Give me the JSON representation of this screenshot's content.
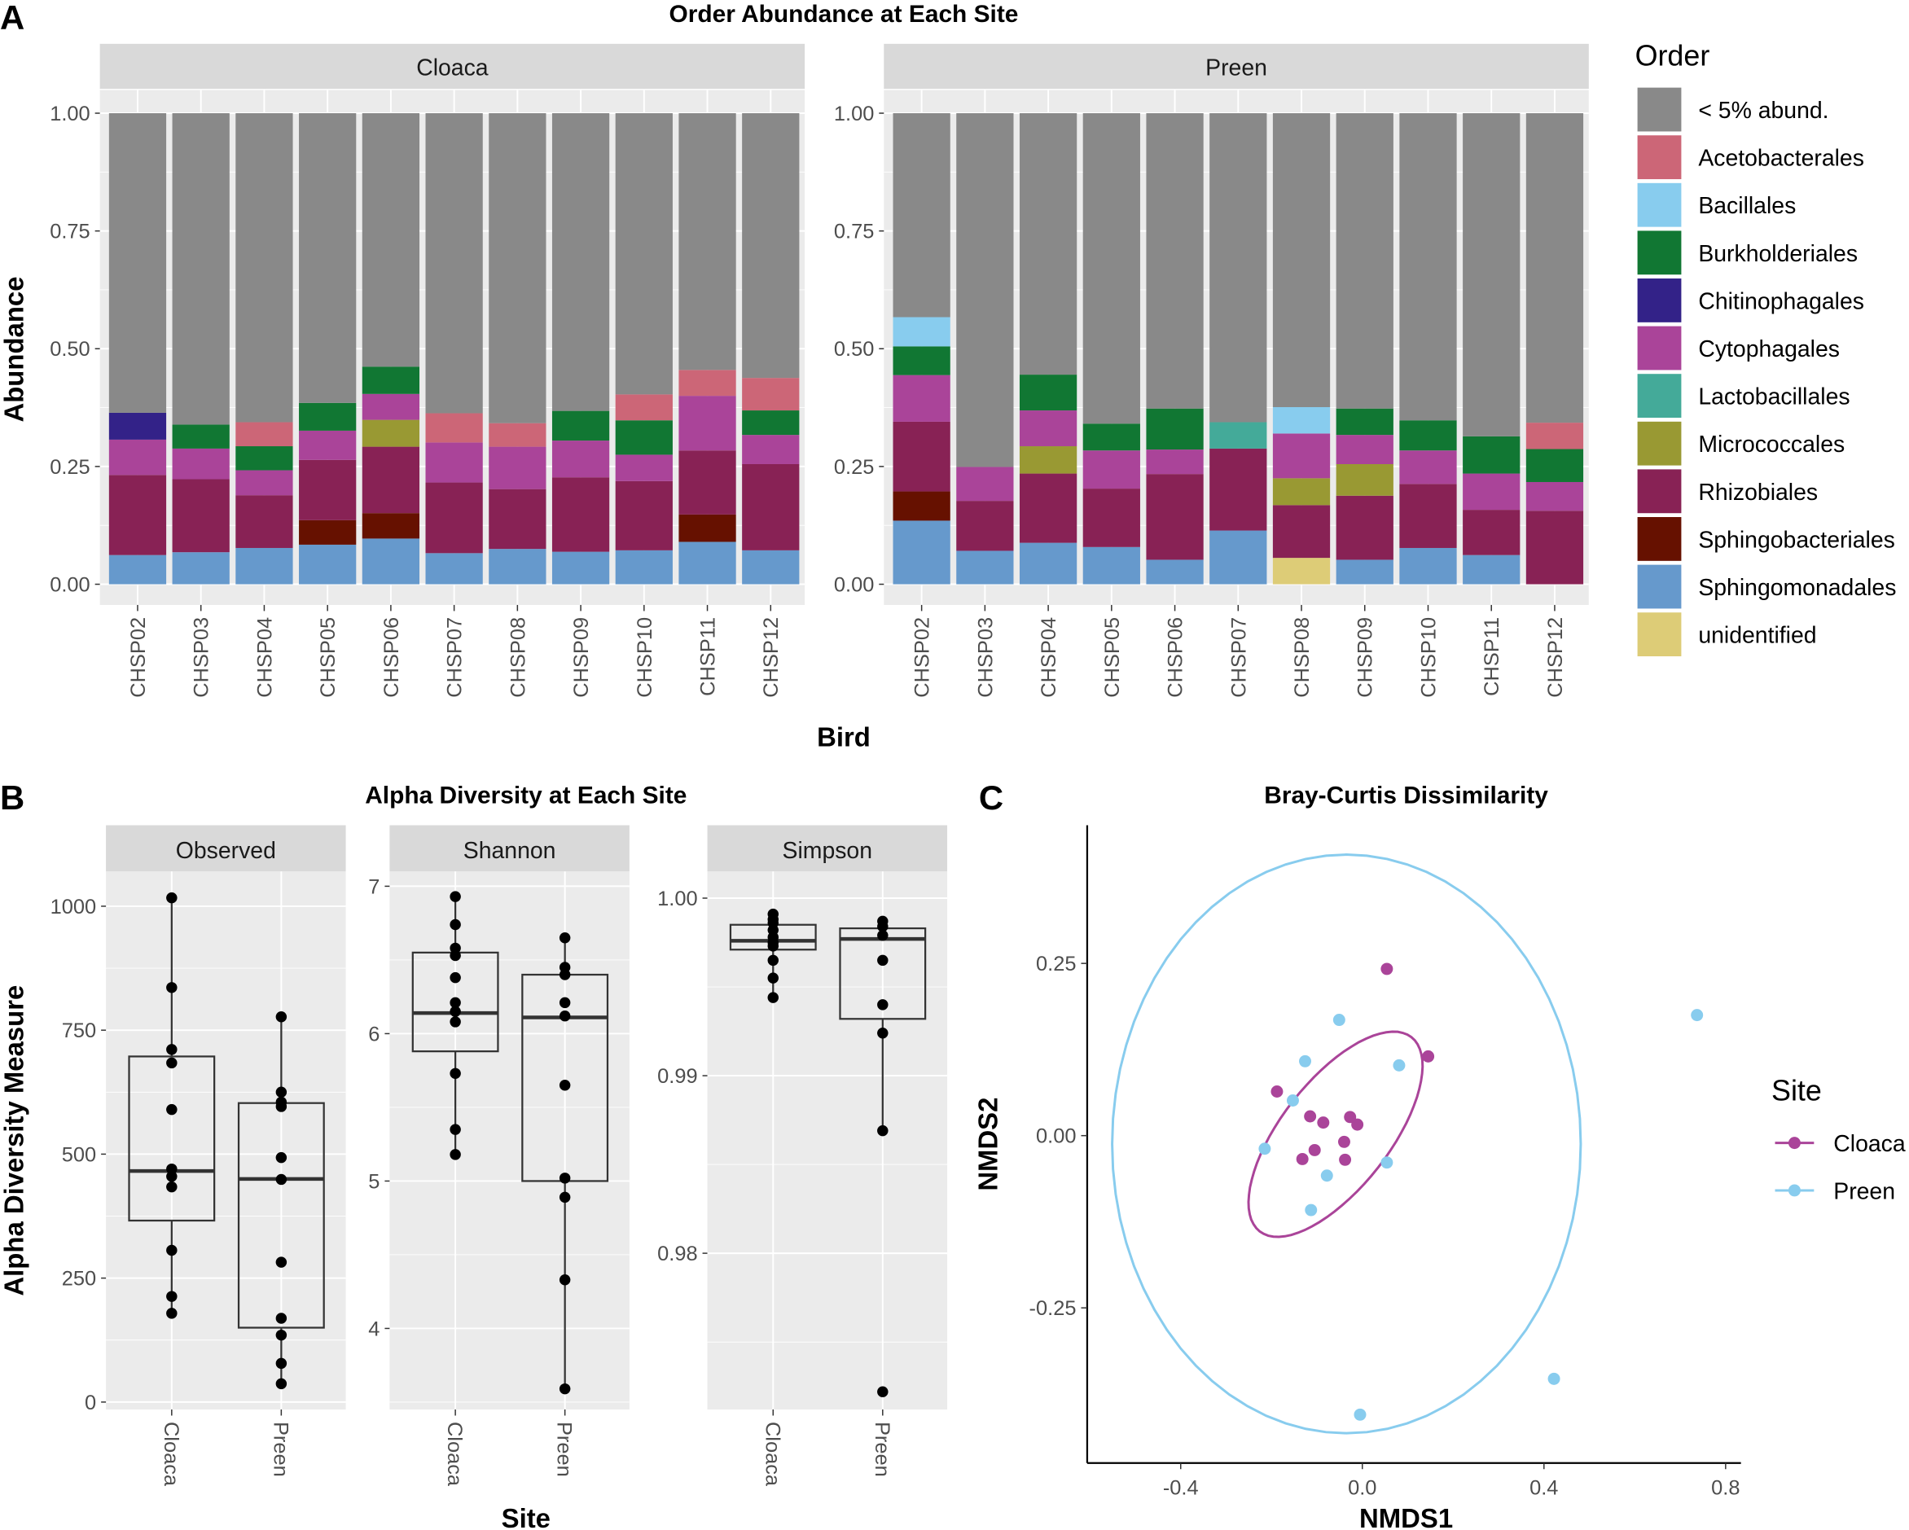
{
  "panel_labels": {
    "a": "A",
    "b": "B",
    "c": "C"
  },
  "chart_data": [
    {
      "type": "bar",
      "stacked": true,
      "title": "Order Abundance at Each Site",
      "xlabel": "Bird",
      "ylabel": "Abundance",
      "ylim": [
        0,
        1
      ],
      "yticks": [
        "0.00",
        "0.25",
        "0.50",
        "0.75",
        "1.00"
      ],
      "legend": {
        "title": "Order",
        "placement": "right"
      },
      "orders": [
        {
          "name": "< 5% abund.",
          "color": "#898989"
        },
        {
          "name": "Acetobacterales",
          "color": "#CC6677"
        },
        {
          "name": "Bacillales",
          "color": "#88CCEE"
        },
        {
          "name": "Burkholderiales",
          "color": "#117733"
        },
        {
          "name": "Chitinophagales",
          "color": "#332288"
        },
        {
          "name": "Cytophagales",
          "color": "#AA4499"
        },
        {
          "name": "Lactobacillales",
          "color": "#44AA99"
        },
        {
          "name": "Micrococcales",
          "color": "#999933"
        },
        {
          "name": "Rhizobiales",
          "color": "#882255"
        },
        {
          "name": "Sphingobacteriales",
          "color": "#661100"
        },
        {
          "name": "Sphingomonadales",
          "color": "#6699CC"
        },
        {
          "name": "unidentified",
          "color": "#DDCC77"
        }
      ],
      "facets": [
        {
          "label": "Cloaca",
          "bars": [
            {
              "bird": "CHSP02",
              "values": {
                "Sphingomonadales": 0.062,
                "Rhizobiales": 0.17,
                "Cytophagales": 0.075,
                "Chitinophagales": 0.057,
                "< 5% abund.": 0.636
              }
            },
            {
              "bird": "CHSP03",
              "values": {
                "Sphingomonadales": 0.068,
                "Rhizobiales": 0.155,
                "Cytophagales": 0.065,
                "Burkholderiales": 0.051,
                "< 5% abund.": 0.661
              }
            },
            {
              "bird": "CHSP04",
              "values": {
                "Sphingomonadales": 0.077,
                "Rhizobiales": 0.112,
                "Cytophagales": 0.053,
                "Burkholderiales": 0.051,
                "Acetobacterales": 0.051,
                "< 5% abund.": 0.656
              }
            },
            {
              "bird": "CHSP05",
              "values": {
                "Sphingomonadales": 0.084,
                "Sphingobacteriales": 0.052,
                "Rhizobiales": 0.128,
                "Cytophagales": 0.062,
                "Burkholderiales": 0.059,
                "< 5% abund.": 0.615
              }
            },
            {
              "bird": "CHSP06",
              "values": {
                "Sphingomonadales": 0.097,
                "Sphingobacteriales": 0.054,
                "Rhizobiales": 0.141,
                "Micrococcales": 0.057,
                "Cytophagales": 0.055,
                "Burkholderiales": 0.058,
                "< 5% abund.": 0.538
              }
            },
            {
              "bird": "CHSP07",
              "values": {
                "Sphingomonadales": 0.066,
                "Rhizobiales": 0.15,
                "Cytophagales": 0.085,
                "Acetobacterales": 0.062,
                "< 5% abund.": 0.637
              }
            },
            {
              "bird": "CHSP08",
              "values": {
                "Sphingomonadales": 0.075,
                "Rhizobiales": 0.127,
                "Cytophagales": 0.09,
                "Acetobacterales": 0.05,
                "< 5% abund.": 0.658
              }
            },
            {
              "bird": "CHSP09",
              "values": {
                "Sphingomonadales": 0.069,
                "Rhizobiales": 0.158,
                "Cytophagales": 0.078,
                "Burkholderiales": 0.063,
                "< 5% abund.": 0.632
              }
            },
            {
              "bird": "CHSP10",
              "values": {
                "Sphingomonadales": 0.072,
                "Rhizobiales": 0.147,
                "Cytophagales": 0.056,
                "Burkholderiales": 0.073,
                "Acetobacterales": 0.055,
                "< 5% abund.": 0.597
              }
            },
            {
              "bird": "CHSP11",
              "values": {
                "Sphingomonadales": 0.09,
                "Sphingobacteriales": 0.058,
                "Rhizobiales": 0.136,
                "Cytophagales": 0.116,
                "Acetobacterales": 0.055,
                "< 5% abund.": 0.545
              }
            },
            {
              "bird": "CHSP12",
              "values": {
                "Sphingomonadales": 0.072,
                "Rhizobiales": 0.183,
                "Cytophagales": 0.062,
                "Burkholderiales": 0.052,
                "Acetobacterales": 0.069,
                "< 5% abund.": 0.562
              }
            }
          ]
        },
        {
          "label": "Preen",
          "bars": [
            {
              "bird": "CHSP02",
              "values": {
                "Sphingomonadales": 0.135,
                "Sphingobacteriales": 0.062,
                "Rhizobiales": 0.148,
                "Cytophagales": 0.099,
                "Burkholderiales": 0.061,
                "Bacillales": 0.062,
                "< 5% abund.": 0.433
              }
            },
            {
              "bird": "CHSP03",
              "values": {
                "Sphingomonadales": 0.071,
                "Rhizobiales": 0.106,
                "Cytophagales": 0.072,
                "< 5% abund.": 0.751
              }
            },
            {
              "bird": "CHSP04",
              "values": {
                "Sphingomonadales": 0.088,
                "Rhizobiales": 0.147,
                "Micrococcales": 0.058,
                "Cytophagales": 0.076,
                "Burkholderiales": 0.076,
                "< 5% abund.": 0.555
              }
            },
            {
              "bird": "CHSP05",
              "values": {
                "Sphingomonadales": 0.079,
                "Rhizobiales": 0.124,
                "Cytophagales": 0.081,
                "Burkholderiales": 0.057,
                "< 5% abund.": 0.659
              }
            },
            {
              "bird": "CHSP06",
              "values": {
                "Sphingomonadales": 0.052,
                "Rhizobiales": 0.182,
                "Cytophagales": 0.052,
                "Burkholderiales": 0.087,
                "< 5% abund.": 0.627
              }
            },
            {
              "bird": "CHSP07",
              "values": {
                "Sphingomonadales": 0.114,
                "Rhizobiales": 0.174,
                "Lactobacillales": 0.056,
                "< 5% abund.": 0.656
              }
            },
            {
              "bird": "CHSP08",
              "values": {
                "unidentified": 0.056,
                "Rhizobiales": 0.112,
                "Micrococcales": 0.057,
                "Cytophagales": 0.095,
                "Bacillales": 0.056,
                "< 5% abund.": 0.624
              }
            },
            {
              "bird": "CHSP09",
              "values": {
                "Sphingomonadales": 0.052,
                "Rhizobiales": 0.136,
                "Micrococcales": 0.067,
                "Cytophagales": 0.062,
                "Burkholderiales": 0.056,
                "< 5% abund.": 0.627
              }
            },
            {
              "bird": "CHSP10",
              "values": {
                "Sphingomonadales": 0.077,
                "Rhizobiales": 0.136,
                "Cytophagales": 0.071,
                "Burkholderiales": 0.064,
                "< 5% abund.": 0.652
              }
            },
            {
              "bird": "CHSP11",
              "values": {
                "Sphingomonadales": 0.062,
                "Rhizobiales": 0.096,
                "Cytophagales": 0.077,
                "Burkholderiales": 0.079,
                "< 5% abund.": 0.686
              }
            },
            {
              "bird": "CHSP12",
              "values": {
                "Rhizobiales": 0.156,
                "Cytophagales": 0.061,
                "Burkholderiales": 0.07,
                "Acetobacterales": 0.056,
                "< 5% abund.": 0.657
              }
            }
          ]
        }
      ]
    },
    {
      "type": "box",
      "title": "Alpha Diversity at Each Site",
      "xlabel": "Site",
      "ylabel": "Alpha Diversity Measure",
      "categories": [
        "Cloaca",
        "Preen"
      ],
      "facets": [
        {
          "label": "Observed",
          "ylim": [
            -15,
            1070
          ],
          "yticks": [
            0,
            250,
            500,
            750,
            1000
          ],
          "ytick_labels": [
            "0",
            "250",
            "500",
            "750",
            "1000"
          ],
          "groups": [
            {
              "site": "Cloaca",
              "q1": 366,
              "median": 466,
              "q3": 697,
              "whisker_low": 179,
              "whisker_high": 1017,
              "points": [
                1017,
                836,
                711,
                684,
                590,
                470,
                455,
                434,
                306,
                213,
                179
              ]
            },
            {
              "site": "Preen",
              "q1": 150,
              "median": 450,
              "q3": 603,
              "whisker_low": 37,
              "whisker_high": 777,
              "points": [
                777,
                625,
                605,
                596,
                493,
                449,
                282,
                169,
                135,
                78,
                37
              ]
            }
          ]
        },
        {
          "label": "Shannon",
          "ylim": [
            3.45,
            7.1
          ],
          "yticks": [
            4,
            5,
            6,
            7
          ],
          "ytick_labels": [
            "4",
            "5",
            "6",
            "7"
          ],
          "groups": [
            {
              "site": "Cloaca",
              "q1": 5.88,
              "median": 6.14,
              "q3": 6.55,
              "whisker_low": 5.18,
              "whisker_high": 6.93,
              "points": [
                6.93,
                6.74,
                6.58,
                6.53,
                6.38,
                6.21,
                6.15,
                6.08,
                5.73,
                5.35,
                5.18
              ]
            },
            {
              "site": "Preen",
              "q1": 5.0,
              "median": 6.11,
              "q3": 6.4,
              "whisker_low": 3.59,
              "whisker_high": 6.65,
              "points": [
                6.65,
                6.45,
                6.4,
                6.21,
                6.12,
                5.65,
                5.02,
                4.89,
                4.33,
                3.59
              ]
            }
          ]
        },
        {
          "label": "Simpson",
          "ylim": [
            0.9712,
            1.0015
          ],
          "yticks": [
            0.98,
            0.99,
            1.0
          ],
          "ytick_labels": [
            "0.98",
            "0.99",
            "1.00"
          ],
          "groups": [
            {
              "site": "Cloaca",
              "q1": 0.9971,
              "median": 0.9976,
              "q3": 0.9985,
              "whisker_low": 0.9944,
              "whisker_high": 0.9991,
              "points": [
                0.9991,
                0.9988,
                0.9986,
                0.9982,
                0.9978,
                0.9975,
                0.9973,
                0.9965,
                0.9955,
                0.9944
              ]
            },
            {
              "site": "Preen",
              "q1": 0.9932,
              "median": 0.9977,
              "q3": 0.9983,
              "whisker_low": 0.9869,
              "whisker_high": 0.9987,
              "points": [
                0.9987,
                0.9984,
                0.9979,
                0.9965,
                0.994,
                0.9924,
                0.9869,
                0.9722
              ]
            }
          ]
        }
      ]
    },
    {
      "type": "scatter",
      "title": "Bray-Curtis Dissimilarity",
      "xlabel": "NMDS1",
      "ylabel": "NMDS2",
      "xticks": [
        -0.4,
        0.0,
        0.4,
        0.8
      ],
      "xtick_labels": [
        "-0.4",
        "0.0",
        "0.4",
        "0.8"
      ],
      "yticks": [
        -0.25,
        0.0,
        0.25
      ],
      "ytick_labels": [
        "-0.25",
        "0.00",
        "0.25"
      ],
      "legend": {
        "title": "Site",
        "placement": "right"
      },
      "series": [
        {
          "name": "Cloaca",
          "color": "#AA4499",
          "points": [
            [
              0.054,
              0.242
            ],
            [
              0.145,
              0.115
            ],
            [
              -0.188,
              0.064
            ],
            [
              -0.115,
              0.028
            ],
            [
              -0.086,
              0.019
            ],
            [
              -0.027,
              0.027
            ],
            [
              -0.011,
              0.016
            ],
            [
              -0.04,
              -0.009
            ],
            [
              -0.105,
              -0.021
            ],
            [
              -0.132,
              -0.034
            ],
            [
              -0.038,
              -0.035
            ]
          ],
          "ellipse": {
            "center": [
              -0.059,
              0.002
            ],
            "axis1": [
              0.167,
              0.141
            ],
            "axis2": [
              0.094,
              -0.048
            ]
          }
        },
        {
          "name": "Preen",
          "color": "#88CCEE",
          "points": [
            [
              0.737,
              0.175
            ],
            [
              -0.051,
              0.168
            ],
            [
              0.081,
              0.102
            ],
            [
              -0.126,
              0.108
            ],
            [
              -0.153,
              0.051
            ],
            [
              -0.215,
              -0.019
            ],
            [
              -0.078,
              -0.058
            ],
            [
              0.054,
              -0.039
            ],
            [
              -0.113,
              -0.108
            ],
            [
              0.422,
              -0.353
            ],
            [
              -0.005,
              -0.405
            ]
          ],
          "ellipse": {
            "center": [
              -0.035,
              -0.012
            ],
            "axis1": [
              0.516,
              0
            ],
            "axis2": [
              0,
              0.42
            ]
          }
        }
      ]
    }
  ]
}
